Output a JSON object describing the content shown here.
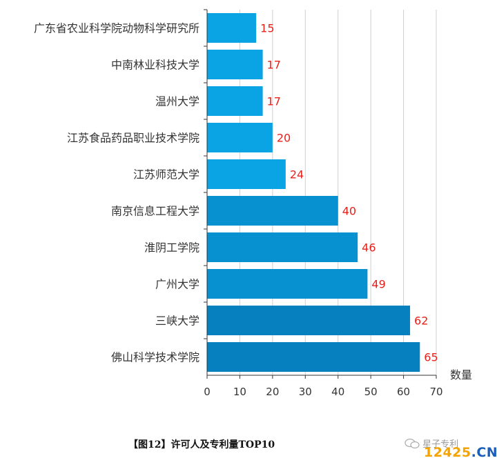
{
  "chart_data": {
    "type": "bar",
    "orientation": "horizontal",
    "categories": [
      "广东省农业科学院动物科学研究所",
      "中南林业科技大学",
      "温州大学",
      "江苏食品药品职业技术学院",
      "江苏师范大学",
      "南京信息工程大学",
      "淮阴工学院",
      "广州大学",
      "三峡大学",
      "佛山科学技术学院"
    ],
    "values": [
      15,
      17,
      17,
      20,
      24,
      40,
      46,
      49,
      62,
      65
    ],
    "xlabel": "数量",
    "xlim": [
      0,
      70
    ],
    "xticks": [
      "0",
      "10",
      "20",
      "30",
      "40",
      "50",
      "60",
      "70"
    ],
    "grid": true,
    "data_labels": true,
    "colors": {
      "bar_light": "#0aa3e4",
      "bar_mid": "#0891d0",
      "bar_dark": "#0680bf",
      "value_label": "#e8201a",
      "grid": "#cfcfcf",
      "axis": "#333333"
    }
  },
  "caption": "【图12】许可人及专利量TOP10",
  "watermark": {
    "brand": "星子专利",
    "site_num": "12425",
    "site_dot": ".",
    "site_tld": "CN"
  }
}
